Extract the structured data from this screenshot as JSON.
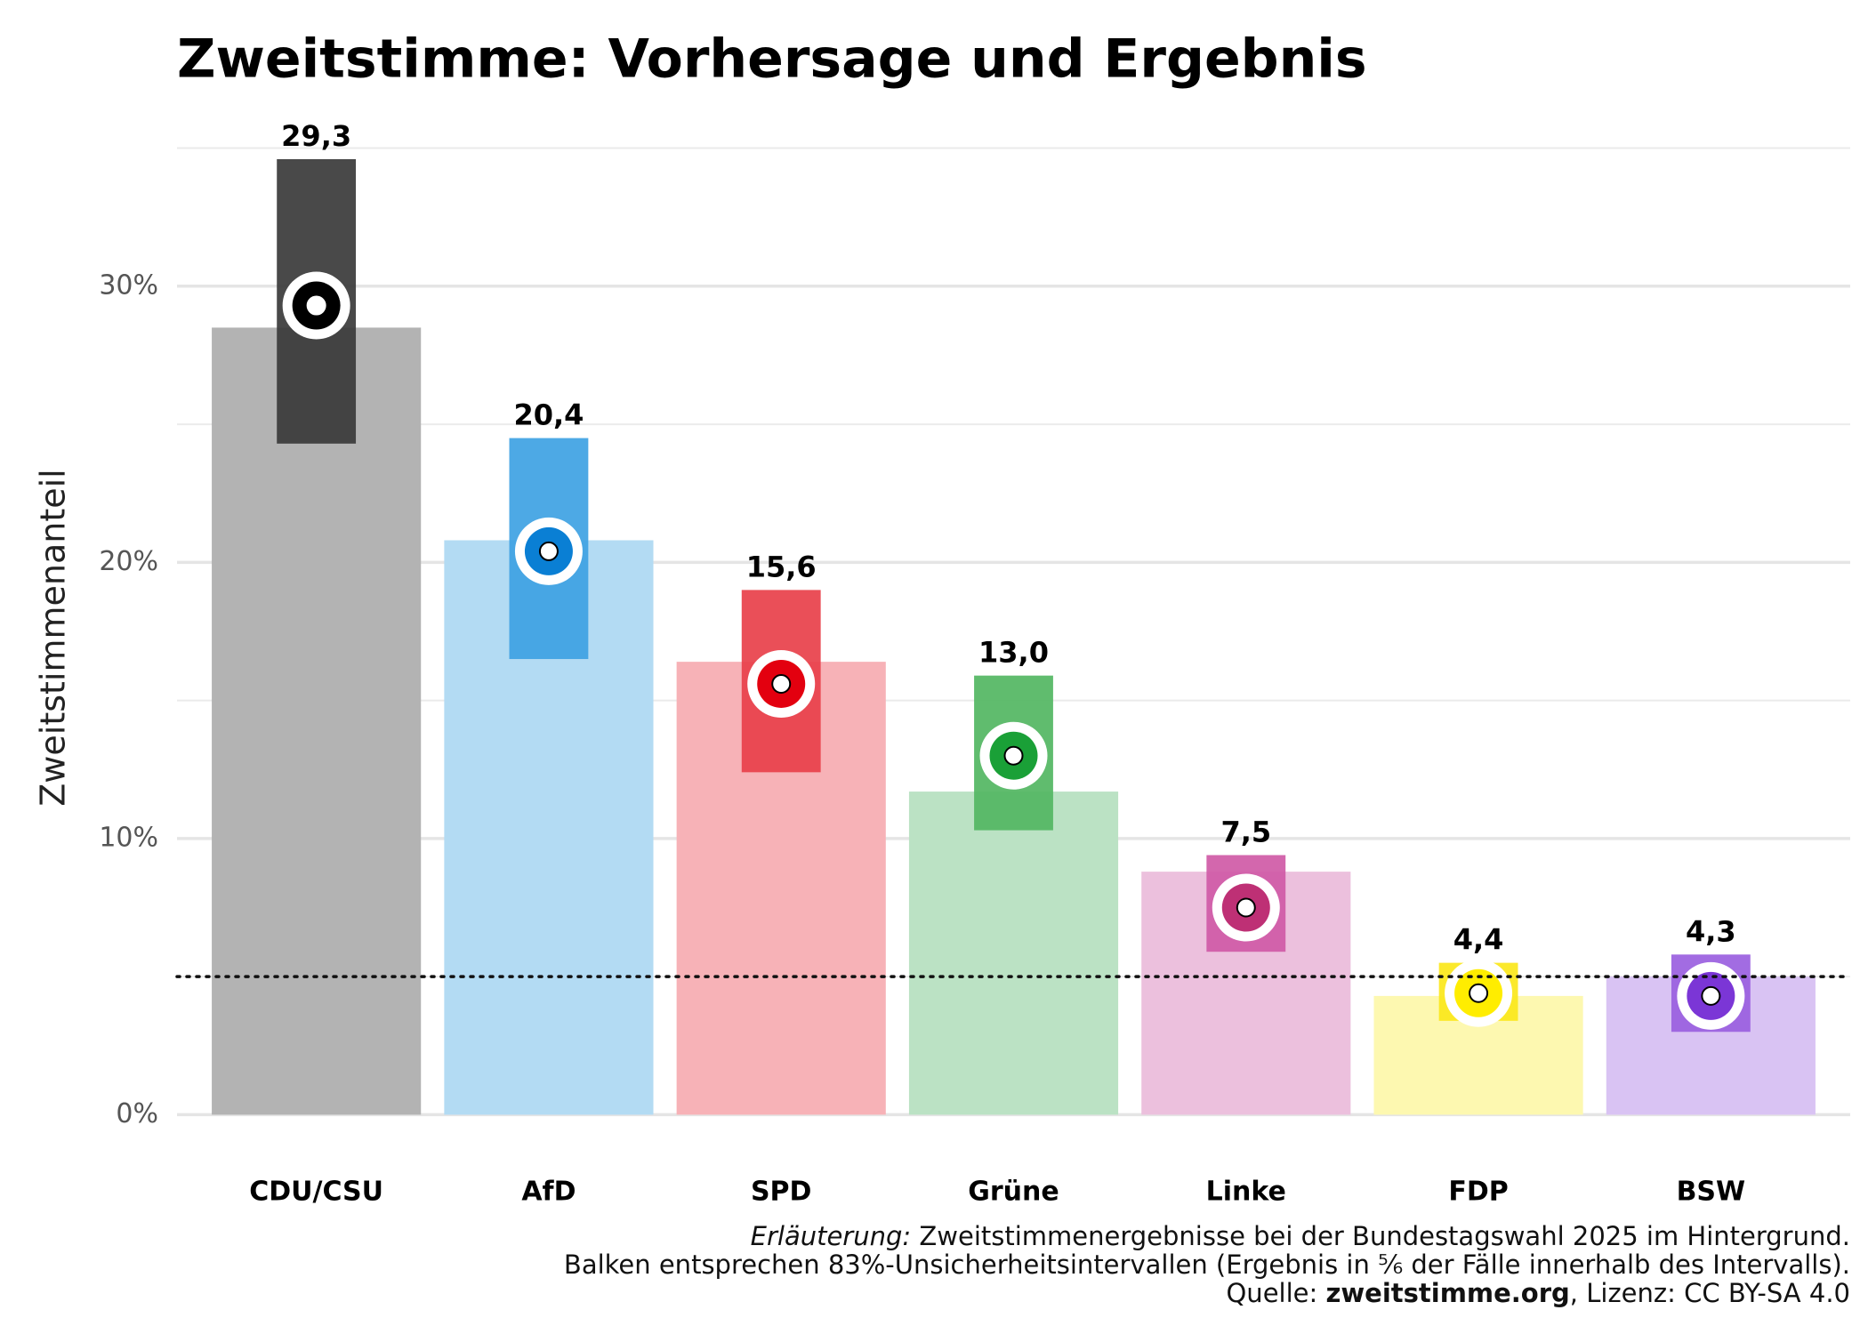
{
  "chart_data": {
    "type": "bar",
    "title": "Zweitstimme: Vorhersage und Ergebnis",
    "y_label": "Zweitstimmenanteil",
    "categories": [
      "CDU/CSU",
      "AfD",
      "SPD",
      "Grüne",
      "Linke",
      "FDP",
      "BSW"
    ],
    "result_values": [
      28.5,
      20.8,
      16.4,
      11.7,
      8.8,
      4.3,
      5.0
    ],
    "interval_low": [
      24.3,
      16.5,
      12.4,
      10.3,
      5.9,
      3.4,
      3.0
    ],
    "interval_high": [
      34.6,
      24.5,
      19.0,
      15.9,
      9.4,
      5.5,
      5.8
    ],
    "values": [
      29.3,
      20.4,
      15.6,
      13.0,
      7.5,
      4.4,
      4.3
    ],
    "value_labels": [
      "29,3",
      "20,4",
      "15,6",
      "13,0",
      "7,5",
      "4,4",
      "4,3"
    ],
    "result_colors": [
      "#b3b3b3",
      "#b3dbf3",
      "#f7b2b7",
      "#bbe2c4",
      "#ecc0dd",
      "#fdf8b0",
      "#d9c3f3"
    ],
    "interval_colors": [
      "#3a3a3a",
      "#3ea2e3",
      "#e8404a",
      "#52b662",
      "#cf5aa6",
      "#fbe71a",
      "#9a60e0"
    ],
    "point_colors": [
      "#000000",
      "#0a7fd4",
      "#e3000f",
      "#1aa037",
      "#be3075",
      "#ffed00",
      "#7b36d6"
    ],
    "threshold": 5,
    "ylim": [
      -1.5,
      35.5
    ],
    "yticks": [
      {
        "value": 0,
        "label": "0%"
      },
      {
        "value": 10,
        "label": "10%"
      },
      {
        "value": 20,
        "label": "20%"
      },
      {
        "value": 30,
        "label": "30%"
      }
    ],
    "minor_yticks": [
      5,
      15,
      25,
      35
    ],
    "grid": true,
    "caption": {
      "line1_italic": "Erläuterung:",
      "line1_rest": " Zweitstimmenergebnisse bei der Bundestagswahl 2025 im Hintergrund.",
      "line2": "Balken entsprechen 83%-Unsicherheitsintervallen (Ergebnis in ⅚ der Fälle innerhalb des Intervalls).",
      "line3_a": "Quelle: ",
      "line3_bold": "zweitstimme.org",
      "line3_b": ", Lizenz: CC BY-SA 4.0"
    }
  }
}
